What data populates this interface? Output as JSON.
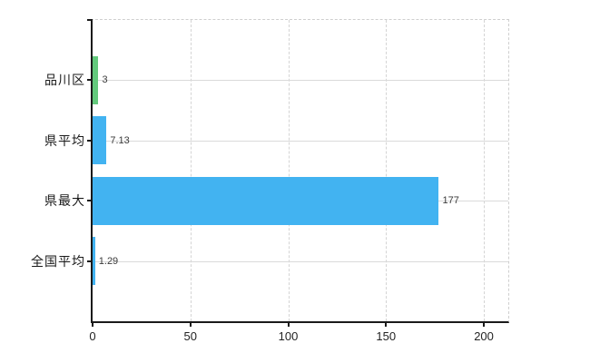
{
  "chart_data": {
    "type": "bar",
    "orientation": "horizontal",
    "title": "",
    "categories": [
      "品川区",
      "県平均",
      "県最大",
      "全国平均"
    ],
    "values": [
      3,
      7.13,
      177,
      1.29
    ],
    "value_labels": [
      "3",
      "7.13",
      "177",
      "1.29"
    ],
    "series": [
      {
        "name": "値",
        "values": [
          3,
          7.13,
          177,
          1.29
        ]
      }
    ],
    "bar_colors": [
      "#63c97c",
      "#42b3f1",
      "#42b3f1",
      "#42b3f1"
    ],
    "highlight_color": "#63c97c",
    "default_color": "#42b3f1",
    "x_tick_labels": [
      "0",
      "50",
      "100",
      "150",
      "200"
    ],
    "x_tick_values": [
      0,
      50,
      100,
      150,
      200
    ],
    "xlim": [
      0,
      212.5
    ],
    "xlabel": "",
    "ylabel": "",
    "legend": "none",
    "grid": {
      "vertical": "dashed",
      "horizontal": "solid"
    },
    "colors": {
      "axis": "#1a1a1a",
      "vertical_grid": "#d4d4d4",
      "horizontal_grid": "#dadada",
      "plot_border_dashed": "#cfcfcf",
      "value_label_text": "#3a3a3a",
      "category_label_text": "#1a1a1a",
      "tick_label_text": "#232323",
      "background": "#ffffff"
    }
  }
}
